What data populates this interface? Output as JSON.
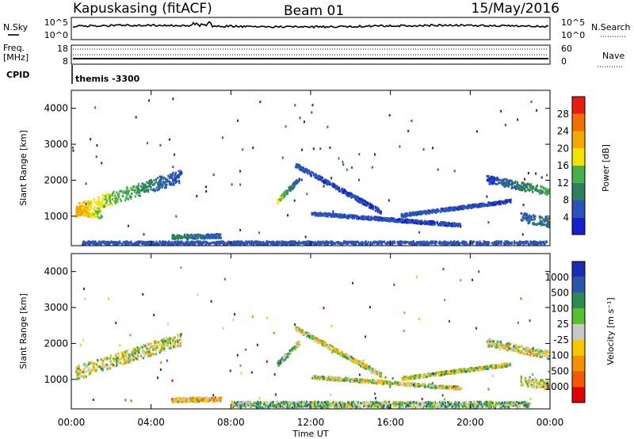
{
  "header": {
    "station": "Kapuskasing (fitACF)",
    "beam": "Beam 01",
    "date": "15/May/2016"
  },
  "summary_panels": {
    "nsky_label": "N.Sky",
    "nsky_ticks": [
      "10^5",
      "10^0"
    ],
    "nsearch_label": "N.Search",
    "nsearch_ticks": [
      "10^5",
      "10^0"
    ],
    "freq_label_line1": "Freq.",
    "freq_label_line2": "[MHz]",
    "freq_ticks": [
      "18",
      "8"
    ],
    "nave_label": "Nave",
    "nave_ticks": [
      "60",
      "0"
    ],
    "cpid_label": "CPID",
    "cpid_value": "themis -3300"
  },
  "colors": {
    "power_scale": [
      "#1520c8",
      "#2a55b8",
      "#2e7f5e",
      "#48b04a",
      "#f2e400",
      "#f5a800",
      "#f07000",
      "#e81c10"
    ],
    "velocity_scale": [
      "#e00000",
      "#f05a00",
      "#f59000",
      "#f7c800",
      "#c8c8c8",
      "#58c030",
      "#2e8a50",
      "#2a55a8",
      "#1a2cb0"
    ]
  },
  "chart_data": [
    {
      "type": "heatmap",
      "name": "power",
      "ylabel": "Slant Range [km]",
      "x_ticks": [
        "00:00",
        "04:00",
        "08:00",
        "12:00",
        "16:00",
        "20:00",
        "00:00"
      ],
      "x_range_hours": [
        0,
        24
      ],
      "y_range_km": [
        180,
        4500
      ],
      "y_ticks": [
        1000,
        2000,
        3000,
        4000
      ],
      "colorbar": {
        "label": "Power [dB]",
        "ticks": [
          4,
          8,
          12,
          16,
          20,
          24,
          28
        ],
        "range": [
          0,
          32
        ]
      },
      "features": [
        {
          "t0": 0.2,
          "t1": 5.5,
          "r0": 1200,
          "r1": 2150,
          "v0": 22,
          "v1": 4,
          "thick": 360
        },
        {
          "t0": 0.2,
          "t1": 1.5,
          "r0": 1200,
          "r1": 1100,
          "v0": 24,
          "v1": 14,
          "thick": 260
        },
        {
          "t0": 10.3,
          "t1": 11.4,
          "r0": 1450,
          "r1": 2050,
          "v0": 18,
          "v1": 4,
          "thick": 140
        },
        {
          "t0": 11.2,
          "t1": 15.5,
          "r0": 2450,
          "r1": 1150,
          "v0": 6,
          "v1": 4,
          "thick": 120
        },
        {
          "t0": 12.0,
          "t1": 19.5,
          "r0": 1100,
          "r1": 780,
          "v0": 6,
          "v1": 4,
          "thick": 90
        },
        {
          "t0": 16.5,
          "t1": 22.0,
          "r0": 1050,
          "r1": 1450,
          "v0": 6,
          "v1": 4,
          "thick": 90
        },
        {
          "t0": 20.8,
          "t1": 24.0,
          "r0": 2050,
          "r1": 1700,
          "v0": 4,
          "v1": 14,
          "thick": 220
        },
        {
          "t0": 22.5,
          "t1": 24.0,
          "r0": 1000,
          "r1": 850,
          "v0": 6,
          "v1": 10,
          "thick": 260
        },
        {
          "t0": 0.5,
          "t1": 23.8,
          "r0": 270,
          "r1": 270,
          "v0": 6,
          "v1": 6,
          "thick": 120
        },
        {
          "t0": 5.0,
          "t1": 7.5,
          "r0": 450,
          "r1": 480,
          "v0": 10,
          "v1": 6,
          "thick": 120
        }
      ]
    },
    {
      "type": "heatmap",
      "name": "velocity",
      "ylabel": "Slant Range [km]",
      "xlabel": "Time UT",
      "x_ticks": [
        "00:00",
        "04:00",
        "08:00",
        "12:00",
        "16:00",
        "20:00",
        "00:00"
      ],
      "x_range_hours": [
        0,
        24
      ],
      "y_range_km": [
        180,
        4500
      ],
      "y_ticks": [
        1000,
        2000,
        3000,
        4000
      ],
      "colorbar": {
        "label": "Velocity [m s⁻¹]",
        "ticks": [
          "1000",
          "500",
          "100",
          "25",
          "-25",
          "-100",
          "-500",
          "-1000"
        ]
      },
      "features": [
        {
          "t0": 0.2,
          "t1": 5.5,
          "r0": 1200,
          "r1": 2150,
          "v0": 4,
          "v1": 4,
          "thick": 360
        },
        {
          "t0": 10.3,
          "t1": 11.4,
          "r0": 1450,
          "r1": 2050,
          "v0": 6,
          "v1": 4,
          "thick": 140
        },
        {
          "t0": 11.2,
          "t1": 15.5,
          "r0": 2450,
          "r1": 1150,
          "v0": 4,
          "v1": 4,
          "thick": 120
        },
        {
          "t0": 12.0,
          "t1": 19.5,
          "r0": 1100,
          "r1": 780,
          "v0": 4,
          "v1": 4,
          "thick": 90
        },
        {
          "t0": 16.5,
          "t1": 22.0,
          "r0": 1050,
          "r1": 1450,
          "v0": 4,
          "v1": 4,
          "thick": 90
        },
        {
          "t0": 20.8,
          "t1": 24.0,
          "r0": 2050,
          "r1": 1700,
          "v0": 4,
          "v1": 4,
          "thick": 220
        },
        {
          "t0": 22.5,
          "t1": 24.0,
          "r0": 1000,
          "r1": 850,
          "v0": 4,
          "v1": 4,
          "thick": 260
        },
        {
          "t0": 8.0,
          "t1": 23.0,
          "r0": 330,
          "r1": 330,
          "v0": 5,
          "v1": 5,
          "thick": 160
        },
        {
          "t0": 5.0,
          "t1": 7.5,
          "r0": 450,
          "r1": 480,
          "v0": 3,
          "v1": 3,
          "thick": 120
        }
      ]
    }
  ]
}
